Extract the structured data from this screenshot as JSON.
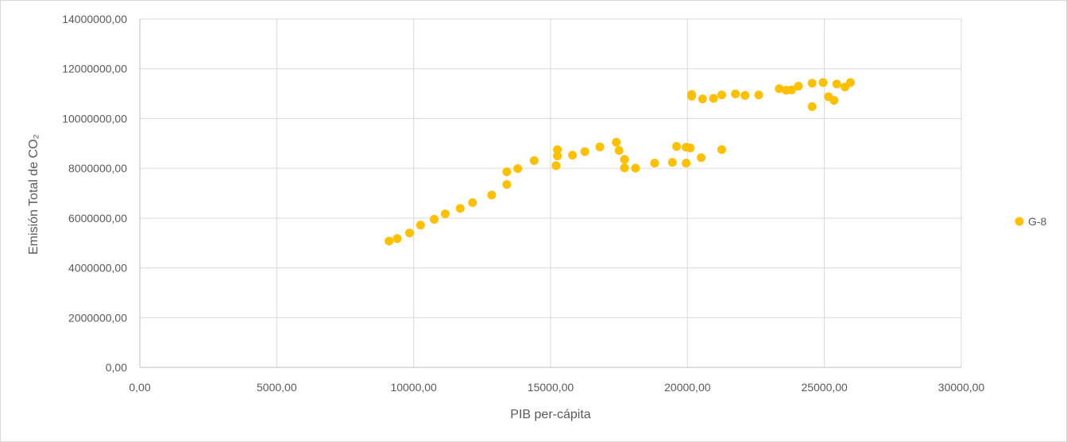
{
  "chart_data": {
    "type": "scatter",
    "title": "",
    "xlabel": "PIB per-cápita",
    "ylabel": "Emisión Total de CO₂",
    "xlim": [
      0,
      30000
    ],
    "ylim": [
      0,
      14000000
    ],
    "x_ticks": [
      0,
      5000,
      10000,
      15000,
      20000,
      25000,
      30000
    ],
    "x_tick_labels": [
      "0,00",
      "5000,00",
      "10000,00",
      "15000,00",
      "20000,00",
      "25000,00",
      "30000,00"
    ],
    "y_ticks": [
      0,
      2000000,
      4000000,
      6000000,
      8000000,
      10000000,
      12000000,
      14000000
    ],
    "y_tick_labels": [
      "0,00",
      "2000000,00",
      "4000000,00",
      "6000000,00",
      "8000000,00",
      "10000000,00",
      "12000000,00",
      "14000000,00"
    ],
    "grid": true,
    "legend_position": "right",
    "series": [
      {
        "name": "G-8",
        "color": "#ffc000",
        "points": [
          [
            9100,
            5080000
          ],
          [
            9400,
            5180000
          ],
          [
            9850,
            5400000
          ],
          [
            10250,
            5720000
          ],
          [
            10750,
            5950000
          ],
          [
            11150,
            6170000
          ],
          [
            11700,
            6390000
          ],
          [
            12150,
            6620000
          ],
          [
            12850,
            6930000
          ],
          [
            13400,
            7350000
          ],
          [
            13400,
            7860000
          ],
          [
            13800,
            7990000
          ],
          [
            14400,
            8310000
          ],
          [
            15200,
            8110000
          ],
          [
            15250,
            8750000
          ],
          [
            15250,
            8500000
          ],
          [
            15800,
            8530000
          ],
          [
            16250,
            8670000
          ],
          [
            16800,
            8860000
          ],
          [
            17400,
            9050000
          ],
          [
            17500,
            8720000
          ],
          [
            17700,
            8360000
          ],
          [
            17700,
            8020000
          ],
          [
            18100,
            8010000
          ],
          [
            18800,
            8210000
          ],
          [
            19450,
            8240000
          ],
          [
            19600,
            8880000
          ],
          [
            19950,
            8210000
          ],
          [
            19950,
            8850000
          ],
          [
            20100,
            8820000
          ],
          [
            20500,
            8430000
          ],
          [
            20150,
            10970000
          ],
          [
            20150,
            10900000
          ],
          [
            20550,
            10790000
          ],
          [
            20950,
            10810000
          ],
          [
            21250,
            10950000
          ],
          [
            21250,
            8750000
          ],
          [
            21750,
            10990000
          ],
          [
            22100,
            10930000
          ],
          [
            22600,
            10950000
          ],
          [
            23350,
            11200000
          ],
          [
            23600,
            11140000
          ],
          [
            23800,
            11150000
          ],
          [
            24050,
            11300000
          ],
          [
            24550,
            11420000
          ],
          [
            24550,
            10480000
          ],
          [
            24950,
            11450000
          ],
          [
            25150,
            10880000
          ],
          [
            25350,
            10730000
          ],
          [
            25450,
            11390000
          ],
          [
            25750,
            11270000
          ],
          [
            25950,
            11450000
          ]
        ]
      }
    ]
  }
}
